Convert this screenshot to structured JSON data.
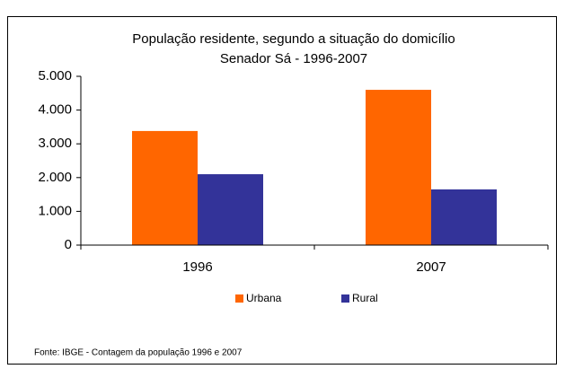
{
  "chart_data": {
    "type": "bar",
    "title": [
      "População residente, segundo a situação do domicílio",
      "Senador  Sá  - 1996-2007"
    ],
    "categories": [
      "1996",
      "2007"
    ],
    "series": [
      {
        "name": "Urbana",
        "color": "#ff6600",
        "values": [
          3380,
          4600
        ]
      },
      {
        "name": "Rural",
        "color": "#333399",
        "values": [
          2100,
          1650
        ]
      }
    ],
    "ylim": [
      0,
      5000
    ],
    "yticks": [
      0,
      {
        "value": 1000,
        "label": "1.000"
      },
      {
        "value": 2000,
        "label": "2.000"
      },
      {
        "value": 3000,
        "label": "3.000"
      },
      {
        "value": 4000,
        "label": "4.000"
      },
      {
        "value": 5000,
        "label": "5.000"
      }
    ],
    "grid": false,
    "legend": "bottom",
    "source": "Fonte: IBGE - Contagem da população 1996 e 2007"
  }
}
